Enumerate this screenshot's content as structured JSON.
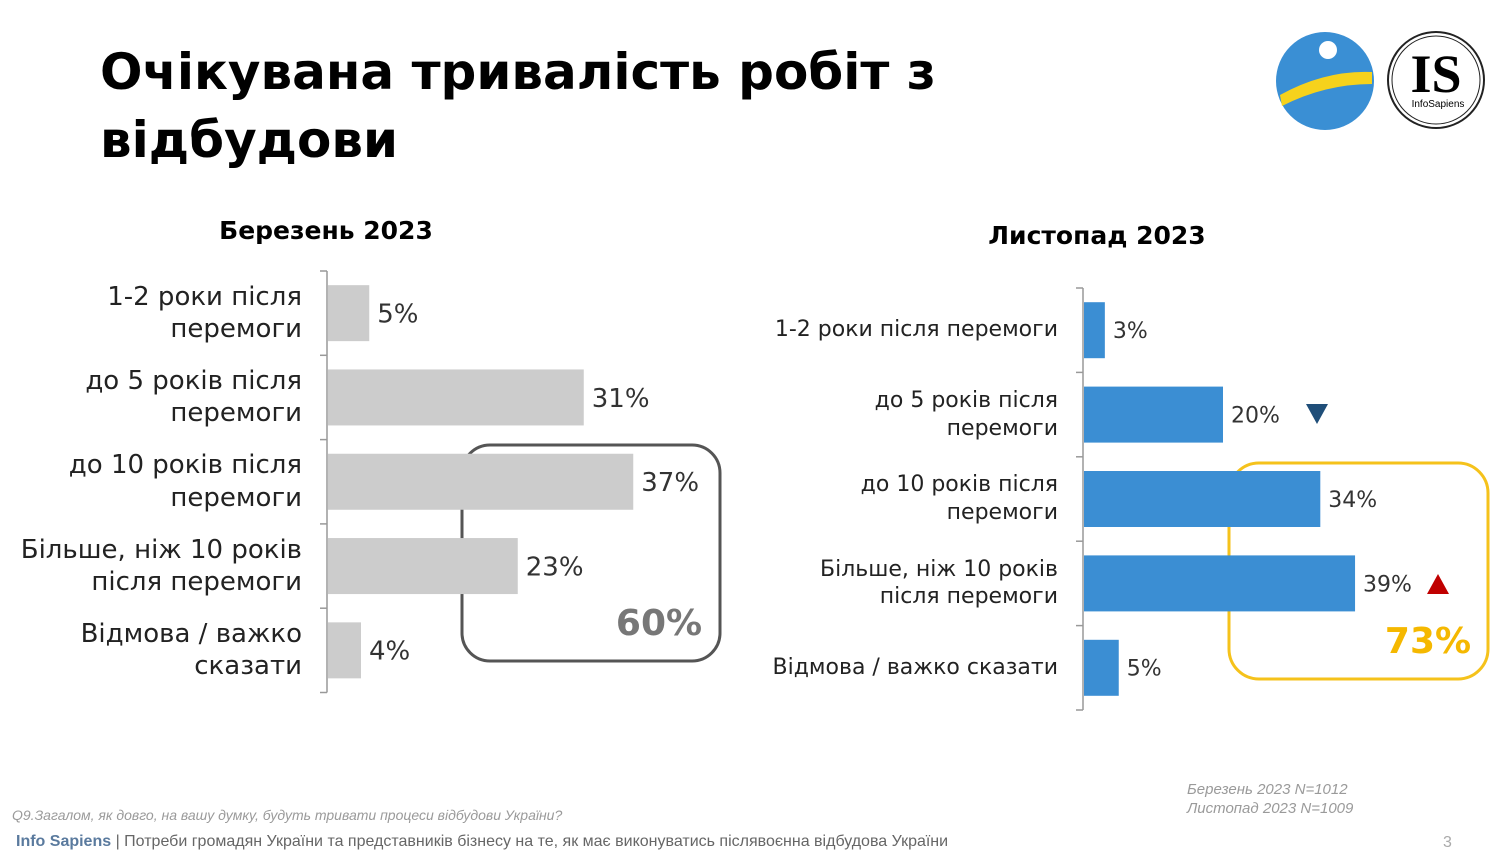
{
  "title": "Очікувана тривалість робіт з відбудови",
  "logo": {
    "mark": "IS",
    "name": "InfoSapiens"
  },
  "chart_data": [
    {
      "type": "bar",
      "title": "Березень 2023",
      "color": "#cccccc",
      "categories": [
        "1-2 роки після перемоги",
        "до 5 років після перемоги",
        "до 10 років після перемоги",
        "Більше, ніж 10 років після перемоги",
        "Відмова / важко сказати"
      ],
      "values": [
        5,
        31,
        37,
        23,
        4
      ],
      "value_labels": [
        "5%",
        "31%",
        "37%",
        "23%",
        "4%"
      ],
      "annotation": "60%"
    },
    {
      "type": "bar",
      "title": "Листопад 2023",
      "color": "#3b8ed3",
      "categories": [
        "1-2 роки після перемоги",
        "до 5 років після перемоги",
        "до 10 років після перемоги",
        "Більше, ніж 10 років після перемоги",
        "Відмова / важко сказати"
      ],
      "values": [
        3,
        20,
        34,
        39,
        5
      ],
      "value_labels": [
        "3%",
        "20%",
        "34%",
        "39%",
        "5%"
      ],
      "annotation": "73%"
    }
  ],
  "sample_notes": [
    "Березень 2023  N=1012",
    "Листопад 2023  N=1009"
  ],
  "question": "Q9.Загалом, як довго, на вашу думку, будуть тривати процеси відбудови України?",
  "footer": {
    "brand": "Info Sapiens",
    "text": "| Потреби громадян України та представників бізнесу на те, як має виконуватись післявоєнна відбудова України"
  },
  "page_number": 3
}
